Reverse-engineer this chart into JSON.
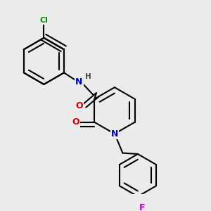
{
  "bg_color": "#ebebeb",
  "atom_colors": {
    "C": "#000000",
    "N": "#0000cc",
    "O": "#cc0000",
    "Cl": "#008800",
    "F": "#cc00cc",
    "H": "#444444"
  },
  "bond_color": "#000000",
  "bond_width": 1.5,
  "dbo": 0.018,
  "figsize": [
    3.0,
    3.0
  ],
  "dpi": 100
}
